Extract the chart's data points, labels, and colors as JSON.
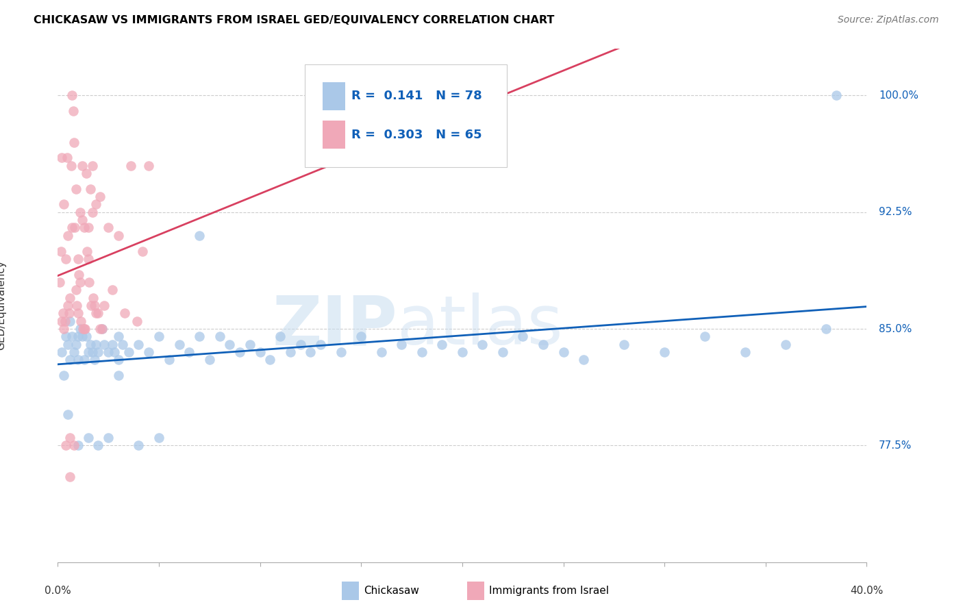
{
  "title": "CHICKASAW VS IMMIGRANTS FROM ISRAEL GED/EQUIVALENCY CORRELATION CHART",
  "source": "Source: ZipAtlas.com",
  "ylabel": "GED/Equivalency",
  "xmin": 0.0,
  "xmax": 40.0,
  "ymin": 70.0,
  "ymax": 103.0,
  "R_blue": 0.141,
  "N_blue": 78,
  "R_pink": 0.303,
  "N_pink": 65,
  "blue_color": "#aac8e8",
  "pink_color": "#f0a8b8",
  "blue_line_color": "#1060b8",
  "pink_line_color": "#d84060",
  "ytick_vals": [
    77.5,
    85.0,
    92.5,
    100.0
  ],
  "ytick_labels": [
    "77.5%",
    "85.0%",
    "92.5%",
    "100.0%"
  ],
  "blue_x": [
    0.2,
    0.3,
    0.4,
    0.5,
    0.6,
    0.6,
    0.7,
    0.8,
    0.9,
    1.0,
    1.0,
    1.1,
    1.2,
    1.3,
    1.4,
    1.5,
    1.6,
    1.7,
    1.8,
    1.9,
    2.0,
    2.2,
    2.3,
    2.5,
    2.7,
    2.8,
    3.0,
    3.0,
    3.2,
    3.5,
    4.0,
    4.5,
    5.0,
    5.5,
    6.0,
    6.5,
    7.0,
    7.5,
    8.0,
    8.5,
    9.0,
    9.5,
    10.0,
    10.5,
    11.0,
    11.5,
    12.0,
    12.5,
    13.0,
    14.0,
    15.0,
    16.0,
    17.0,
    18.0,
    19.0,
    20.0,
    21.0,
    22.0,
    23.0,
    24.0,
    25.0,
    26.0,
    28.0,
    30.0,
    32.0,
    34.0,
    36.0,
    38.0,
    0.5,
    1.0,
    1.5,
    2.0,
    2.5,
    3.0,
    4.0,
    5.0,
    7.0,
    38.5
  ],
  "blue_y": [
    83.5,
    82.0,
    84.5,
    84.0,
    83.0,
    85.5,
    84.5,
    83.5,
    84.0,
    84.5,
    83.0,
    85.0,
    84.5,
    83.0,
    84.5,
    83.5,
    84.0,
    83.5,
    83.0,
    84.0,
    83.5,
    85.0,
    84.0,
    83.5,
    84.0,
    83.5,
    84.5,
    83.0,
    84.0,
    83.5,
    84.0,
    83.5,
    84.5,
    83.0,
    84.0,
    83.5,
    84.5,
    83.0,
    84.5,
    84.0,
    83.5,
    84.0,
    83.5,
    83.0,
    84.5,
    83.5,
    84.0,
    83.5,
    84.0,
    83.5,
    84.5,
    83.5,
    84.0,
    83.5,
    84.0,
    83.5,
    84.0,
    83.5,
    84.5,
    84.0,
    83.5,
    83.0,
    84.0,
    83.5,
    84.5,
    83.5,
    84.0,
    85.0,
    79.5,
    77.5,
    78.0,
    77.5,
    78.0,
    82.0,
    77.5,
    78.0,
    91.0,
    100.0
  ],
  "pink_x": [
    0.1,
    0.15,
    0.2,
    0.25,
    0.3,
    0.35,
    0.4,
    0.45,
    0.5,
    0.55,
    0.6,
    0.65,
    0.7,
    0.75,
    0.8,
    0.85,
    0.9,
    0.95,
    1.0,
    1.05,
    1.1,
    1.15,
    1.2,
    1.25,
    1.3,
    1.35,
    1.4,
    1.45,
    1.5,
    1.55,
    1.6,
    1.65,
    1.7,
    1.75,
    1.8,
    1.9,
    2.0,
    2.1,
    2.2,
    2.3,
    2.5,
    2.7,
    3.0,
    3.3,
    3.6,
    3.9,
    4.2,
    4.5,
    0.3,
    0.5,
    0.7,
    0.9,
    1.1,
    1.3,
    1.5,
    1.7,
    1.9,
    2.1,
    0.4,
    0.6,
    0.8,
    1.0,
    1.2,
    0.2,
    0.6
  ],
  "pink_y": [
    88.0,
    90.0,
    85.5,
    86.0,
    93.0,
    85.5,
    89.5,
    96.0,
    91.0,
    86.0,
    87.0,
    95.5,
    100.0,
    99.0,
    97.0,
    91.5,
    87.5,
    86.5,
    89.5,
    88.5,
    92.5,
    85.5,
    95.5,
    85.0,
    91.5,
    85.0,
    95.0,
    90.0,
    89.5,
    88.0,
    94.0,
    86.5,
    92.5,
    87.0,
    86.5,
    93.0,
    86.0,
    93.5,
    85.0,
    86.5,
    91.5,
    87.5,
    91.0,
    86.0,
    95.5,
    85.5,
    90.0,
    95.5,
    85.0,
    86.5,
    91.5,
    94.0,
    88.0,
    85.0,
    91.5,
    95.5,
    86.0,
    85.0,
    77.5,
    78.0,
    77.5,
    86.0,
    92.0,
    96.0,
    75.5
  ]
}
